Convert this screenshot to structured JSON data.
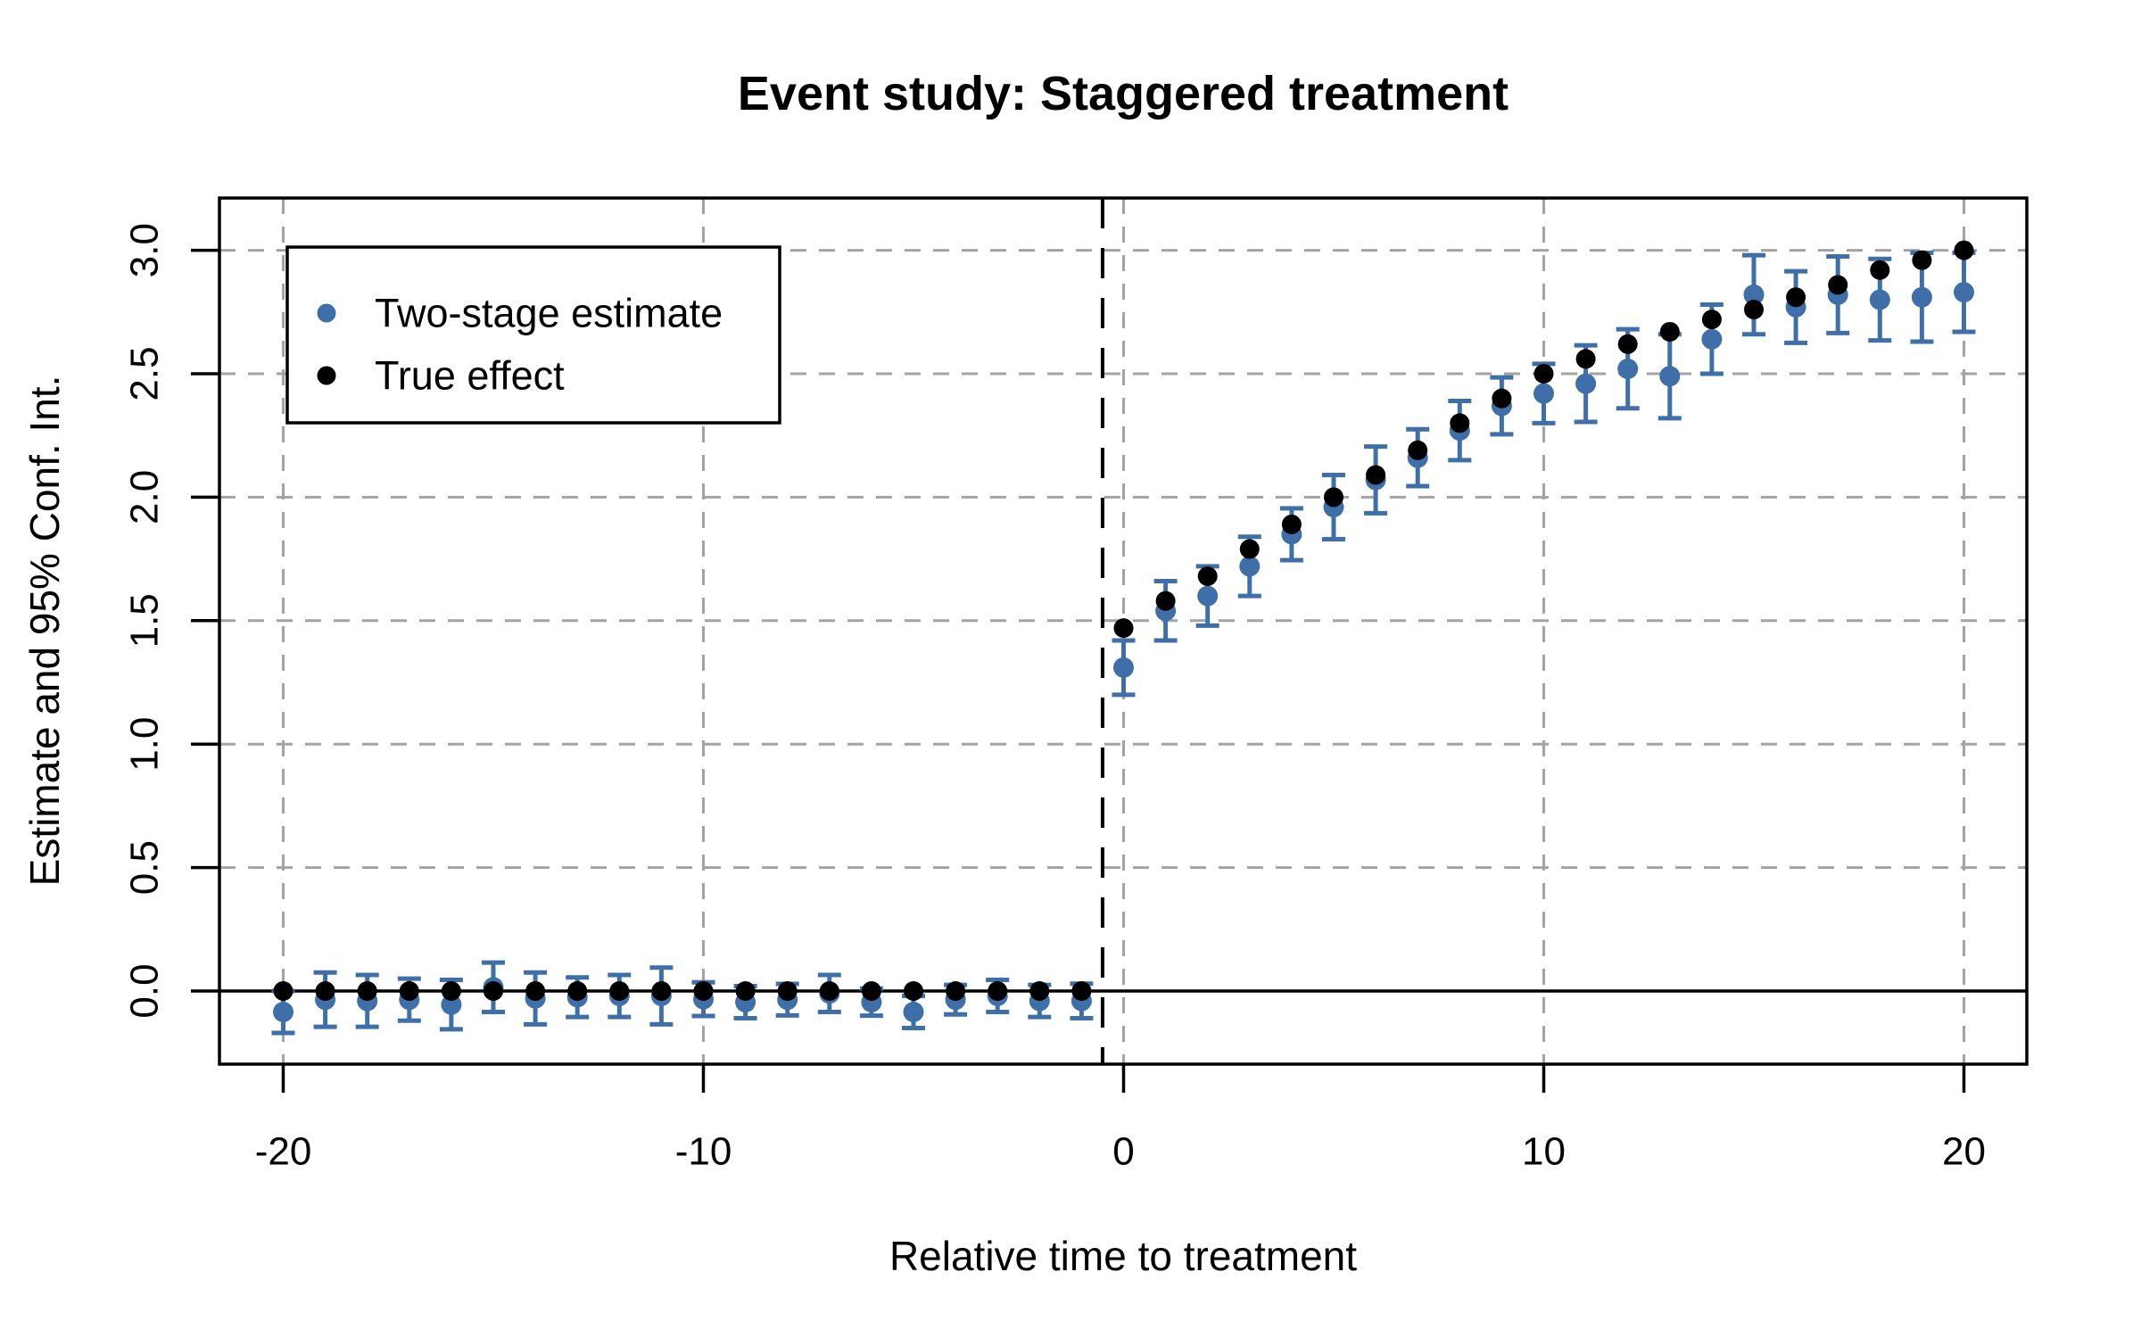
{
  "figure": {
    "title": "Event study: Staggered treatment",
    "x_label": "Relative time to treatment",
    "y_label": "Estimate and 95% Conf. Int."
  },
  "legend": {
    "items": [
      {
        "label": "Two-stage estimate",
        "marker": "dot-icon",
        "color": "#3F6FA8"
      },
      {
        "label": "True effect",
        "marker": "dot-icon",
        "color": "#000000"
      }
    ],
    "position": "top-left"
  },
  "colors": {
    "estimate": "#3F6FA8",
    "true_effect": "#000000",
    "grid": "#A3A3A3",
    "axis": "#000000",
    "treatment_line": "#000000",
    "background": "#FFFFFF"
  },
  "chart_data": {
    "type": "scatter",
    "title": "Event study: Staggered treatment",
    "xlabel": "Relative time to treatment",
    "ylabel": "Estimate and 95% Conf. Int.",
    "x_ticks": [
      -20,
      -10,
      0,
      10,
      20
    ],
    "x_tick_labels": [
      "-20",
      "-10",
      "0",
      "10",
      "20"
    ],
    "y_ticks": [
      0,
      0.5,
      1,
      1.5,
      2,
      2.5,
      3
    ],
    "y_tick_labels": [
      "0.0",
      "0.5",
      "1.0",
      "1.5",
      "2.0",
      "2.5",
      "3.0"
    ],
    "xlim": [
      -21.5,
      21.5
    ],
    "ylim": [
      -0.3,
      3.21
    ],
    "grid": "dashed-on-both-axes",
    "zero_line_y": 0,
    "treatment_line_x": -0.5,
    "x": [
      -20,
      -19,
      -18,
      -17,
      -16,
      -15,
      -14,
      -13,
      -12,
      -11,
      -10,
      -9,
      -8,
      -7,
      -6,
      -5,
      -4,
      -3,
      -2,
      -1,
      0,
      1,
      2,
      3,
      4,
      5,
      6,
      7,
      8,
      9,
      10,
      11,
      12,
      13,
      14,
      15,
      16,
      17,
      18,
      19,
      20
    ],
    "series": [
      {
        "name": "Two-stage estimate",
        "marker": "filled-circle",
        "color": "#3F6FA8",
        "values": [
          -0.085,
          -0.035,
          -0.04,
          -0.035,
          -0.055,
          0.015,
          -0.03,
          -0.025,
          -0.02,
          -0.02,
          -0.033,
          -0.045,
          -0.035,
          -0.01,
          -0.045,
          -0.085,
          -0.035,
          -0.02,
          -0.04,
          -0.04,
          1.31,
          1.54,
          1.6,
          1.72,
          1.85,
          1.96,
          2.07,
          2.16,
          2.27,
          2.37,
          2.42,
          2.46,
          2.52,
          2.49,
          2.64,
          2.82,
          2.77,
          2.82,
          2.8,
          2.81,
          2.83
        ],
        "ci_low": [
          -0.17,
          -0.145,
          -0.145,
          -0.12,
          -0.155,
          -0.085,
          -0.135,
          -0.105,
          -0.105,
          -0.135,
          -0.101,
          -0.11,
          -0.099,
          -0.085,
          -0.1,
          -0.15,
          -0.095,
          -0.085,
          -0.105,
          -0.11,
          1.2,
          1.42,
          1.48,
          1.6,
          1.745,
          1.83,
          1.935,
          2.045,
          2.15,
          2.255,
          2.3,
          2.305,
          2.36,
          2.32,
          2.5,
          2.66,
          2.625,
          2.665,
          2.635,
          2.63,
          2.67
        ],
        "ci_high": [
          0.0,
          0.075,
          0.065,
          0.05,
          0.045,
          0.115,
          0.075,
          0.055,
          0.065,
          0.095,
          0.035,
          0.02,
          0.029,
          0.065,
          0.01,
          -0.02,
          0.025,
          0.045,
          0.025,
          0.03,
          1.42,
          1.66,
          1.72,
          1.84,
          1.955,
          2.09,
          2.205,
          2.275,
          2.39,
          2.485,
          2.54,
          2.615,
          2.68,
          2.66,
          2.78,
          2.98,
          2.915,
          2.975,
          2.965,
          2.99,
          2.99
        ]
      },
      {
        "name": "True effect",
        "marker": "filled-circle",
        "color": "#000000",
        "values": [
          0,
          0,
          0,
          0,
          0,
          0,
          0,
          0,
          0,
          0,
          0,
          0,
          0,
          0,
          0,
          0,
          0,
          0,
          0,
          0,
          1.47,
          1.58,
          1.68,
          1.79,
          1.89,
          2.0,
          2.09,
          2.19,
          2.3,
          2.4,
          2.5,
          2.56,
          2.62,
          2.67,
          2.72,
          2.76,
          2.81,
          2.86,
          2.92,
          2.96,
          3.0
        ]
      }
    ]
  }
}
